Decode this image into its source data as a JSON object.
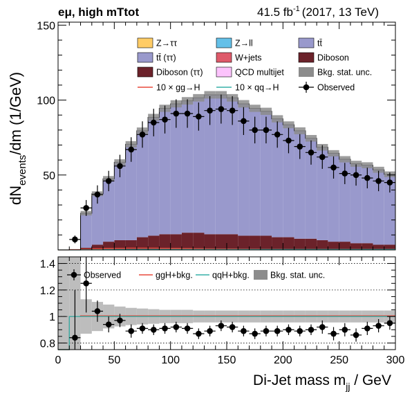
{
  "header": {
    "channel": "eμ, high mTtot",
    "lumi_value": "41.5 fb",
    "lumi_exp": "-1",
    "lumi_detail": "(2017, 13 TeV)"
  },
  "chart_data": [
    {
      "type": "bar",
      "stacked": true,
      "ylabel_main": "dN",
      "ylabel_sub": "events",
      "ylabel_tail": "/dm (1/GeV)",
      "xlim": [
        0,
        300
      ],
      "ylim": [
        0,
        152
      ],
      "yticks": [
        50,
        100,
        150
      ],
      "bin_edges": [
        0,
        10,
        20,
        30,
        40,
        50,
        60,
        70,
        80,
        90,
        100,
        110,
        120,
        130,
        140,
        150,
        160,
        170,
        180,
        190,
        200,
        210,
        220,
        230,
        240,
        250,
        260,
        270,
        280,
        290,
        300
      ],
      "series": [
        {
          "name": "Z→ττ",
          "color": "#ffcc66",
          "values": [
            0,
            0,
            0.5,
            0.5,
            0.5,
            0.5,
            0.5,
            0.5,
            0.5,
            0.5,
            0.5,
            0.5,
            0.5,
            0.5,
            0.5,
            0.5,
            0.5,
            0.5,
            0.5,
            0.5,
            0.5,
            0.5,
            0.5,
            0.5,
            0.5,
            0.5,
            0.5,
            0.5,
            0.5,
            0.5
          ]
        },
        {
          "name": "Z→ll",
          "color": "#64c0e8",
          "values": [
            0,
            0,
            0,
            0,
            0,
            0,
            0,
            0,
            0,
            0,
            0,
            0,
            0,
            0,
            0,
            0,
            0,
            0,
            0,
            0,
            0,
            0,
            0,
            0,
            0,
            0,
            0,
            0,
            0,
            0
          ]
        },
        {
          "name": "Diboson",
          "color": "#6b222a",
          "values": [
            0,
            0,
            1,
            3,
            5,
            6,
            6,
            8,
            9,
            10,
            10,
            11,
            11,
            10,
            10,
            10,
            9,
            9,
            9,
            8,
            8,
            7,
            7,
            6,
            5,
            5,
            4,
            4,
            3,
            3
          ]
        },
        {
          "name": "Diboson (ττ)",
          "color": "#6b222a",
          "values": [
            0,
            0,
            0,
            0,
            0,
            0,
            0,
            0,
            0,
            0,
            0,
            0,
            0,
            0,
            0,
            0,
            0,
            0,
            0,
            0,
            0,
            0,
            0,
            0,
            0,
            0,
            0,
            0,
            0,
            0
          ]
        },
        {
          "name": "W+jets",
          "color": "#de5a6a",
          "values": [
            0,
            0,
            0,
            0,
            0,
            0,
            0,
            0,
            0,
            0,
            0,
            0,
            0,
            0,
            0,
            0,
            0,
            0,
            0,
            0,
            0,
            0,
            0,
            0,
            0,
            0,
            0,
            0,
            0,
            0
          ]
        },
        {
          "name": "QCD multijet",
          "color": "#fcc3fc",
          "values": [
            0,
            0,
            0,
            0,
            0,
            0,
            0,
            0,
            0,
            0,
            0,
            0,
            0,
            0,
            0,
            0,
            0,
            0,
            0,
            0,
            0,
            0,
            0,
            0,
            0,
            0,
            0,
            0,
            0,
            0
          ]
        },
        {
          "name": "tt̄ (ττ)",
          "color": "#9999cc",
          "values": [
            0,
            0,
            0,
            0,
            0,
            0,
            0,
            0,
            0,
            0,
            0,
            0,
            0,
            0,
            0,
            0,
            0,
            0,
            0,
            0,
            0,
            0,
            0,
            0,
            0,
            0,
            0,
            0,
            0,
            0
          ]
        },
        {
          "name": "tt̄",
          "color": "#9999cc",
          "values": [
            0,
            0,
            23,
            34,
            42,
            52,
            64,
            71,
            79,
            84,
            87,
            88,
            90,
            93,
            93,
            91,
            88,
            85,
            83,
            79,
            75,
            72,
            67,
            62,
            59,
            55,
            53,
            52,
            50,
            47
          ]
        }
      ],
      "stat_unc": [
        0,
        0,
        1.5,
        1.6,
        1.8,
        2.0,
        2.1,
        2.2,
        2.3,
        2.4,
        2.4,
        2.5,
        2.5,
        2.5,
        2.5,
        2.5,
        2.5,
        2.4,
        2.4,
        2.4,
        2.3,
        2.3,
        2.2,
        2.2,
        2.1,
        2.1,
        2.0,
        2.0,
        2.0,
        1.9
      ],
      "observed": {
        "name": "Observed",
        "x": [
          15,
          25,
          35,
          45,
          55,
          65,
          75,
          85,
          95,
          105,
          115,
          125,
          135,
          145,
          155,
          165,
          175,
          185,
          195,
          205,
          215,
          225,
          235,
          245,
          255,
          265,
          275,
          285,
          295
        ],
        "y": [
          7,
          28,
          37,
          46,
          56,
          67,
          77,
          85,
          87,
          91,
          91,
          89,
          93,
          94,
          93,
          86,
          80,
          80,
          77,
          73,
          69,
          65,
          62,
          55,
          51,
          50,
          48,
          46,
          45
        ],
        "err": [
          2.6,
          5.3,
          6.1,
          6.8,
          7.5,
          8.2,
          8.8,
          9.2,
          9.3,
          9.5,
          9.5,
          9.4,
          9.6,
          9.7,
          9.6,
          9.3,
          8.9,
          8.9,
          8.8,
          8.5,
          8.3,
          8.1,
          7.9,
          7.4,
          7.1,
          7.1,
          6.9,
          6.8,
          6.7
        ]
      },
      "signal": [
        {
          "name": "10 × gg→H",
          "color": "#e8493b",
          "values": [
            0,
            0.2,
            0.5,
            0.8,
            1.0,
            1.1,
            1.2,
            1.2,
            1.2,
            1.1,
            1.0,
            0.9,
            0.8,
            0.7,
            0.6,
            0.6,
            0.5,
            0.5,
            0.4,
            0.4,
            0.3,
            0.3,
            0.3,
            0.2,
            0.2,
            0.2,
            0.2,
            0.1,
            0.1,
            0.1
          ]
        },
        {
          "name": "10 × qq→H",
          "color": "#36b0a8",
          "values": [
            0,
            0,
            0.1,
            0.1,
            0.2,
            0.2,
            0.2,
            0.3,
            0.3,
            0.3,
            0.3,
            0.3,
            0.3,
            0.3,
            0.3,
            0.3,
            0.3,
            0.3,
            0.3,
            0.3,
            0.3,
            0.3,
            0.3,
            0.3,
            0.3,
            0.3,
            0.3,
            0.3,
            0.3,
            0.3
          ]
        }
      ],
      "legend": {
        "placement": "top",
        "entries": [
          {
            "label": "Z→ττ",
            "kind": "box",
            "color": "#ffcc66"
          },
          {
            "label": "Z→ll",
            "kind": "box",
            "color": "#64c0e8"
          },
          {
            "label": "tt̄",
            "kind": "box",
            "color": "#9999cc"
          },
          {
            "label": "tt̄ (ττ)",
            "kind": "box",
            "color": "#9999cc"
          },
          {
            "label": "W+jets",
            "kind": "box",
            "color": "#de5a6a"
          },
          {
            "label": "Diboson",
            "kind": "box",
            "color": "#6b222a"
          },
          {
            "label": "Diboson (ττ)",
            "kind": "box",
            "color": "#6b222a"
          },
          {
            "label": "QCD multijet",
            "kind": "box",
            "color": "#fcc3fc"
          },
          {
            "label": "Bkg. stat. unc.",
            "kind": "box",
            "color": "#8c8c8c"
          },
          {
            "label": "10 × gg→H",
            "kind": "line",
            "color": "#e8493b"
          },
          {
            "label": "10 × qq→H",
            "kind": "line",
            "color": "#36b0a8"
          },
          {
            "label": "Observed",
            "kind": "marker",
            "color": "#000000"
          }
        ]
      }
    },
    {
      "type": "scatter",
      "xlabel_main": "Di-Jet mass m",
      "xlabel_sub": "jj",
      "xlabel_tail": " / GeV",
      "xlim": [
        0,
        300
      ],
      "ylim": [
        0.75,
        1.45
      ],
      "yticks": [
        0.8,
        1,
        1.2,
        1.4
      ],
      "ytick_labels": [
        "0.8",
        "1",
        "1.2",
        "1.4"
      ],
      "xticks": [
        0,
        50,
        100,
        150,
        200,
        250,
        300
      ],
      "xtick_labels": [
        "0",
        "50",
        "100",
        "150",
        "200",
        "250",
        "300"
      ],
      "grid_lines": [
        0.8,
        1.0,
        1.2,
        1.4
      ],
      "ratio_unc": [
        0.9,
        0.9,
        0.13,
        0.11,
        0.09,
        0.075,
        0.065,
        0.06,
        0.055,
        0.05,
        0.05,
        0.05,
        0.045,
        0.045,
        0.045,
        0.045,
        0.045,
        0.045,
        0.045,
        0.045,
        0.045,
        0.045,
        0.045,
        0.045,
        0.045,
        0.045,
        0.045,
        0.045,
        0.045,
        0.045
      ],
      "observed": {
        "x": [
          15,
          25,
          35,
          45,
          55,
          65,
          75,
          85,
          95,
          105,
          115,
          125,
          135,
          145,
          155,
          165,
          175,
          185,
          195,
          205,
          215,
          225,
          235,
          245,
          255,
          265,
          275,
          285,
          295
        ],
        "y": [
          0.84,
          1.25,
          1.04,
          0.94,
          0.97,
          0.89,
          0.91,
          0.9,
          0.91,
          0.92,
          0.91,
          0.87,
          0.89,
          0.93,
          0.92,
          0.89,
          0.87,
          0.89,
          0.89,
          0.9,
          0.89,
          0.9,
          0.92,
          0.87,
          0.9,
          0.86,
          0.91,
          0.93,
          0.95
        ],
        "err": [
          0.36,
          0.22,
          0.08,
          0.06,
          0.05,
          0.05,
          0.04,
          0.04,
          0.04,
          0.04,
          0.04,
          0.04,
          0.04,
          0.04,
          0.04,
          0.04,
          0.04,
          0.04,
          0.04,
          0.04,
          0.04,
          0.04,
          0.05,
          0.05,
          0.05,
          0.05,
          0.05,
          0.05,
          0.05
        ]
      },
      "ratio_signal": [
        {
          "name": "ggH+bkg.",
          "color": "#e8493b",
          "values": [
            0,
            1,
            1.005,
            1.005,
            1.005,
            1.005,
            1.005,
            1.005,
            1.005,
            1.005,
            1.005,
            1.005,
            1.005,
            1.005,
            1.005,
            1.005,
            1.005,
            1.005,
            1.005,
            1.005,
            1.005,
            1.005,
            1.005,
            1.005,
            1.005,
            1.005,
            1.005,
            1.005,
            1.005,
            1.005
          ]
        },
        {
          "name": "qqH+bkg.",
          "color": "#36b0a8",
          "values": [
            0,
            1,
            1,
            1,
            1,
            1,
            1,
            1,
            1,
            1,
            1,
            1,
            1,
            1,
            1,
            1,
            1,
            1,
            1,
            1,
            1,
            1,
            1,
            1,
            1,
            1,
            1,
            1,
            1,
            1
          ]
        }
      ],
      "legend": {
        "entries": [
          {
            "label": "Observed",
            "kind": "marker",
            "color": "#000000"
          },
          {
            "label": "ggH+bkg.",
            "kind": "line",
            "color": "#e8493b"
          },
          {
            "label": "qqH+bkg.",
            "kind": "line",
            "color": "#36b0a8"
          },
          {
            "label": "Bkg. stat. unc.",
            "kind": "box",
            "color": "#8c8c8c"
          }
        ]
      }
    }
  ]
}
